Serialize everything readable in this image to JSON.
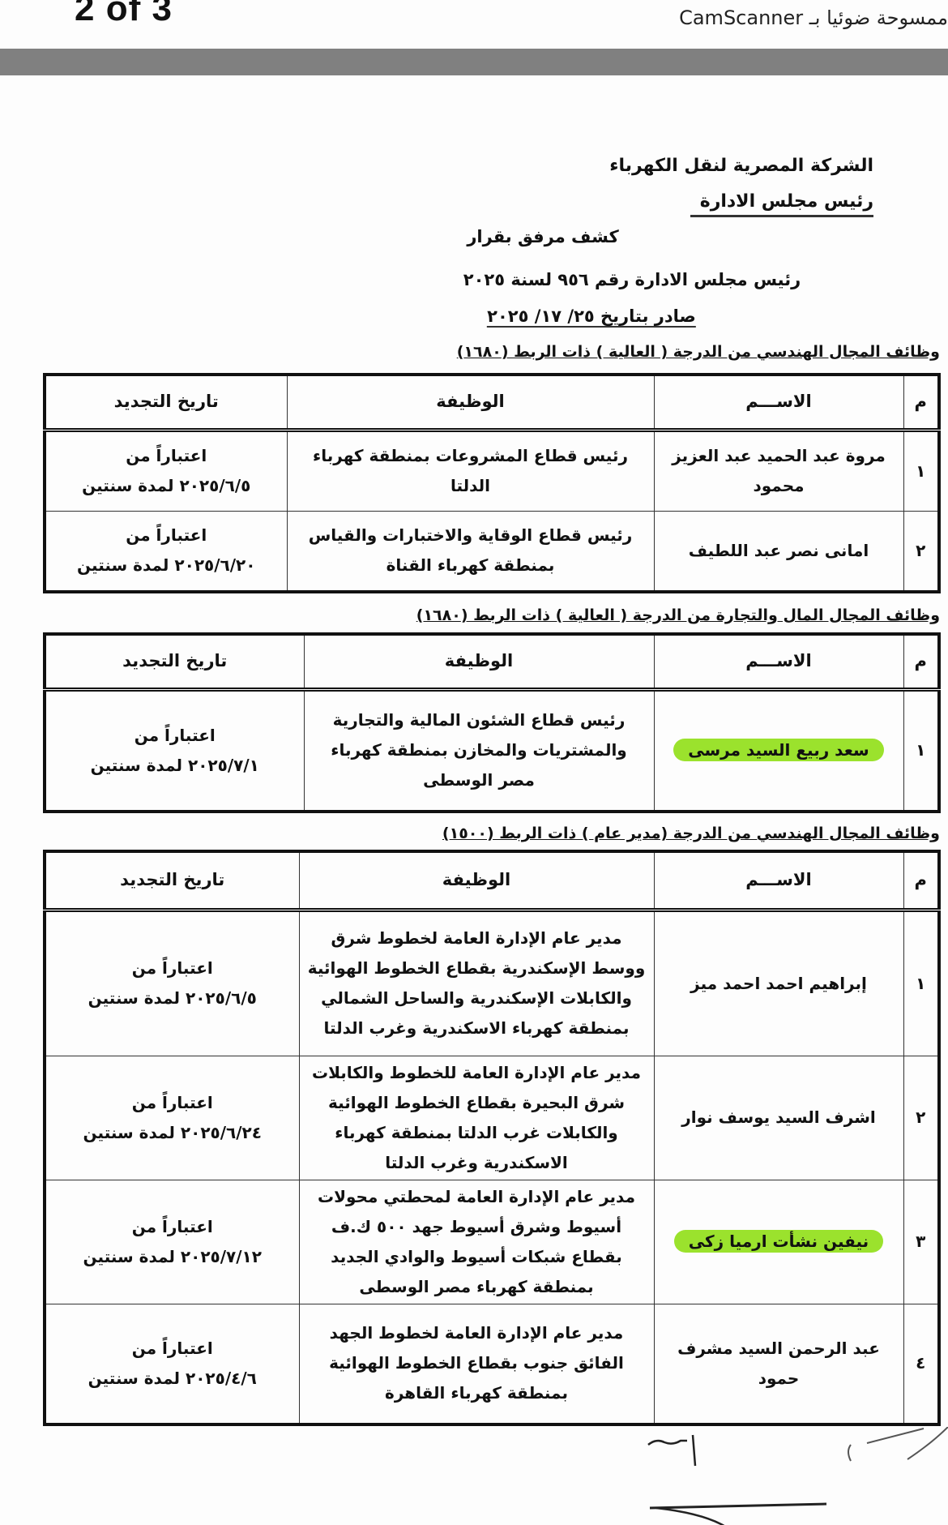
{
  "viewer": {
    "page_indicator": "2 of 3",
    "scanner_label": "ممسوحة ضوئيا بـ CamScanner"
  },
  "header": {
    "company": "الشركة المصرية لنقل الكهرباء",
    "chairman": "رئيس مجلس الادارة",
    "ref_title": "كشف مرفق بقرار",
    "ref_decision": "رئيس مجلس الادارة رقم ٩٥٦ لسنة ٢٠٢٥",
    "ref_date": "صادر بتاريخ ٢٥/ ١٧/ ٢٠٢٥"
  },
  "columns": {
    "no": "م",
    "name": "الاســـم",
    "job": "الوظيفة",
    "renewal": "تاريخ التجديد"
  },
  "highlight_color": "#9be22d",
  "sections": [
    {
      "title": "وظائف المجال الهندسي من الدرجة ( العالية ) ذات الربط (١٦٨٠)",
      "rows": [
        {
          "no": "١",
          "name": "مروة عبد الحميد عبد العزيز محمود",
          "job": "رئيس قطاع المشروعات بمنطقة كهرباء الدلتا",
          "renewal_a": "اعتباراً من",
          "renewal_b": "٢٠٢٥/٦/٥ لمدة سنتين",
          "highlighted": false
        },
        {
          "no": "٢",
          "name": "امانى نصر عبد اللطيف",
          "job": "رئيس قطاع الوقاية والاختبارات والقياس بمنطقة كهرباء القناة",
          "renewal_a": "اعتباراً من",
          "renewal_b": "٢٠٢٥/٦/٢٠ لمدة سنتين",
          "highlighted": false
        }
      ]
    },
    {
      "title": "وظائف المجال المال والتجارة من الدرجة ( العالية ) ذات الربط (١٦٨٠)",
      "rows": [
        {
          "no": "١",
          "name": "سعد ربيع السيد مرسى",
          "job": "رئيس قطاع الشئون المالية والتجارية والمشتريات والمخازن بمنطقة كهرباء مصر الوسطى",
          "renewal_a": "اعتباراً من",
          "renewal_b": "٢٠٢٥/٧/١ لمدة سنتين",
          "highlighted": true
        }
      ]
    },
    {
      "title": "وظائف المجال الهندسي من الدرجة (مدير عام ) ذات الربط (١٥٠٠)",
      "rows": [
        {
          "no": "١",
          "name": "إبراهيم احمد احمد ميز",
          "job": "مدير عام الإدارة العامة لخطوط شرق ووسط الإسكندرية بقطاع الخطوط الهوائية والكابلات الإسكندرية والساحل الشمالي بمنطقة كهرباء الاسكندرية وغرب الدلتا",
          "renewal_a": "اعتباراً من",
          "renewal_b": "٢٠٢٥/٦/٥ لمدة سنتين",
          "highlighted": false
        },
        {
          "no": "٢",
          "name": "اشرف السيد يوسف نوار",
          "job": "مدير عام الإدارة العامة للخطوط والكابلات شرق البحيرة بقطاع الخطوط الهوائية والكابلات غرب الدلتا بمنطقة كهرباء الاسكندرية وغرب الدلتا",
          "renewal_a": "اعتباراً من",
          "renewal_b": "٢٠٢٥/٦/٢٤ لمدة سنتين",
          "highlighted": false
        },
        {
          "no": "٣",
          "name": "نيفين نشأت ارميا زكى",
          "job": "مدير عام الإدارة العامة لمحطتي محولات أسيوط وشرق أسيوط جهد ٥٠٠ ك.ف بقطاع شبكات أسيوط والوادي الجديد بمنطقة كهرباء مصر الوسطى",
          "renewal_a": "اعتباراً من",
          "renewal_b": "٢٠٢٥/٧/١٢ لمدة سنتين",
          "highlighted": true
        },
        {
          "no": "٤",
          "name": "عبد الرحمن السيد مشرف حمود",
          "job": "مدير عام الإدارة العامة لخطوط الجهد الفائق جنوب بقطاع الخطوط الهوائية بمنطقة كهرباء القاهرة",
          "renewal_a": "اعتباراً من",
          "renewal_b": "٢٠٢٥/٤/٦ لمدة سنتين",
          "highlighted": false
        }
      ]
    }
  ]
}
